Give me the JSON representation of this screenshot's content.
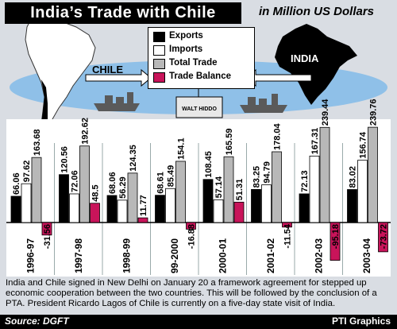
{
  "header": {
    "title": "India’s Trade with Chile",
    "unit": "in Million US Dollars"
  },
  "map_labels": {
    "chile": "CHILE",
    "india": "INDIA"
  },
  "crate_label": "WALT HIDDO",
  "legend": [
    {
      "label": "Exports",
      "color": "#000000"
    },
    {
      "label": "Imports",
      "color": "#ffffff"
    },
    {
      "label": "Total Trade",
      "color": "#b8b8b8"
    },
    {
      "label": "Trade Balance",
      "color": "#c8145a"
    }
  ],
  "chart_data": {
    "type": "bar",
    "title": "India’s Trade with Chile",
    "ylabel": "in Million US Dollars",
    "categories": [
      "1996-97",
      "1997-98",
      "1998-99",
      "99-2000",
      "2000-01",
      "2001-02",
      "2002-03",
      "2003-04"
    ],
    "series": [
      {
        "name": "Exports",
        "color": "#000000",
        "values": [
          66.06,
          120.56,
          68.06,
          68.61,
          108.45,
          83.25,
          72.13,
          83.02
        ]
      },
      {
        "name": "Imports",
        "color": "#ffffff",
        "values": [
          97.62,
          72.06,
          56.29,
          85.49,
          57.14,
          94.79,
          167.31,
          156.74
        ]
      },
      {
        "name": "Total Trade",
        "color": "#b8b8b8",
        "values": [
          163.68,
          192.62,
          124.35,
          154.1,
          165.59,
          178.04,
          239.44,
          239.76
        ]
      },
      {
        "name": "Trade Balance",
        "color": "#c8145a",
        "values": [
          -31.56,
          48.5,
          11.77,
          -16.88,
          51.31,
          -11.54,
          -95.18,
          -73.72
        ]
      }
    ],
    "legend_position": "top-center"
  },
  "caption": "India and Chile signed in New Delhi on January 20 a framework agreement for stepped up economic cooperation between the two countries. This will be followed by the conclusion of a PTA. President Ricardo Lagos of Chile is currently on a five-day state visit of India.",
  "footer": {
    "source": "Source: DGFT",
    "credit": "PTI Graphics"
  }
}
